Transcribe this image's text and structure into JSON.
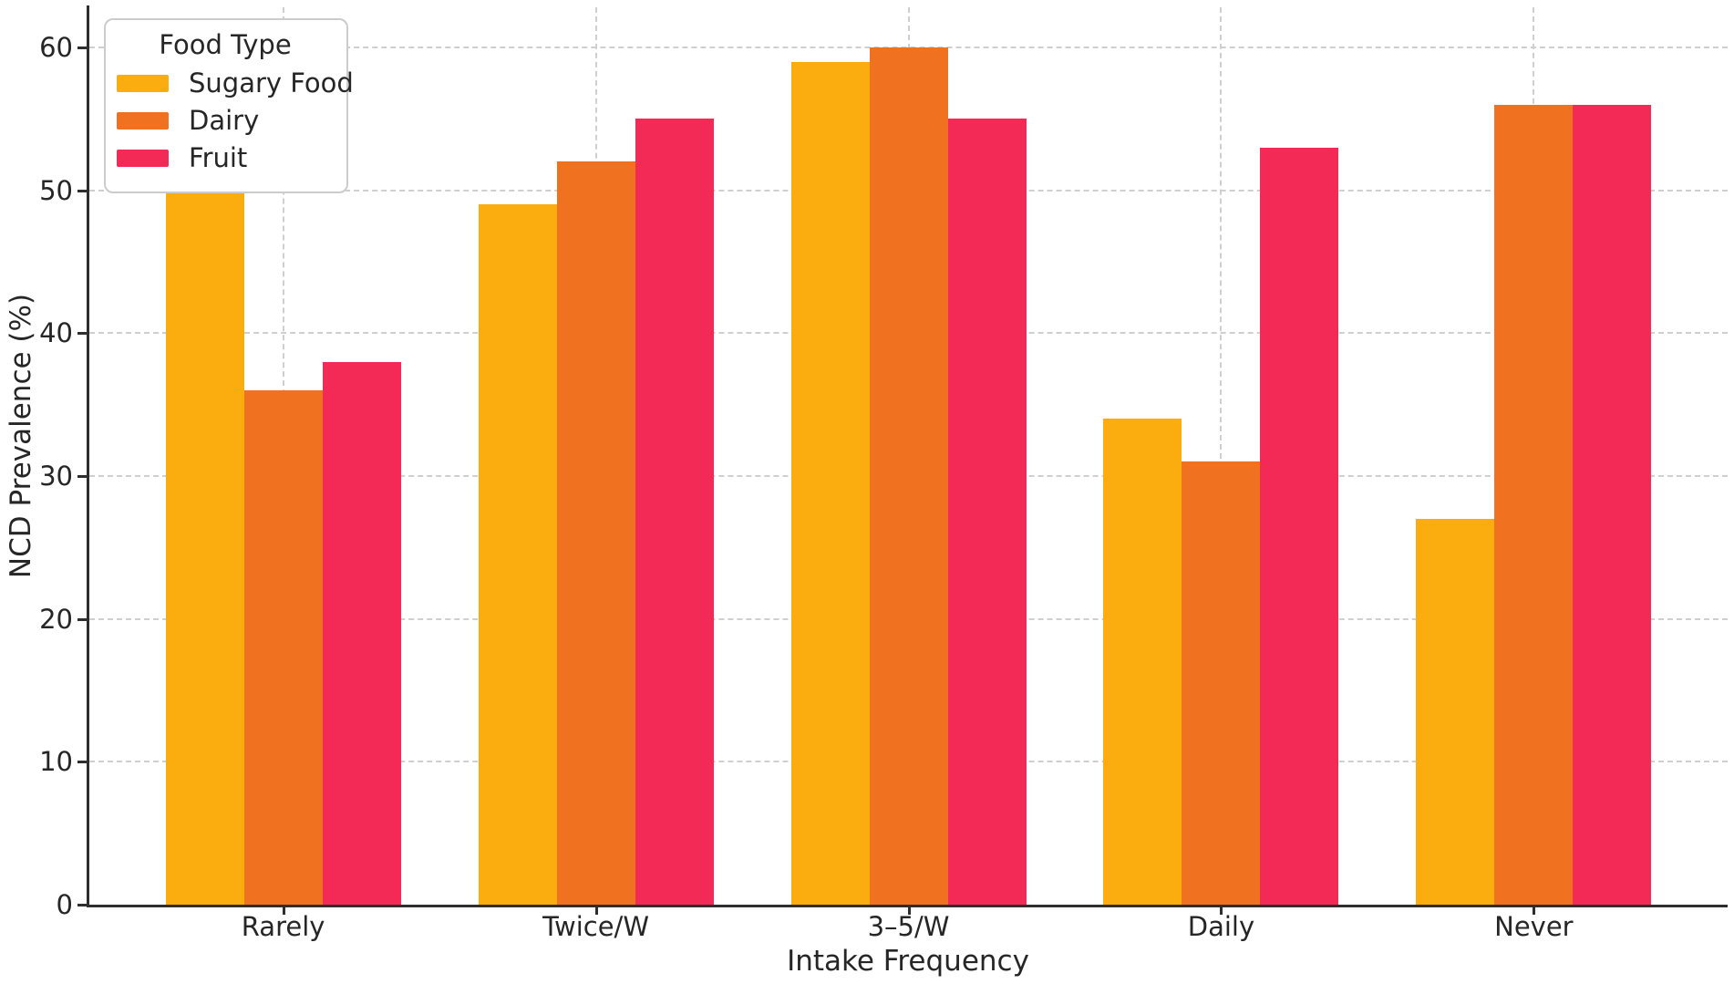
{
  "chart_data": {
    "type": "bar",
    "categories": [
      "Rarely",
      "Twice/W",
      "3–5/W",
      "Daily",
      "Never"
    ],
    "series": [
      {
        "name": "Sugary Food",
        "color": "#FBAD0F",
        "values": [
          51,
          49,
          59,
          34,
          27
        ]
      },
      {
        "name": "Dairy",
        "color": "#F0711F",
        "values": [
          36,
          52,
          60,
          31,
          56
        ]
      },
      {
        "name": "Fruit",
        "color": "#F22A55",
        "values": [
          38,
          55,
          55,
          53,
          56
        ]
      }
    ],
    "title": "",
    "xlabel": "Intake Frequency",
    "ylabel": "NCD Prevalence (%)",
    "yticks": [
      0,
      10,
      20,
      30,
      40,
      50,
      60
    ],
    "ylim": [
      0,
      62.8
    ],
    "legend": {
      "title": "Food Type",
      "position": "upper-left"
    },
    "grid": {
      "visible": true,
      "style": "dashed",
      "axes": "both"
    }
  },
  "style_colors": {
    "grid": "#cfcfcf",
    "spine": "#2e2e2e",
    "text": "#262626",
    "background": "#ffffff",
    "legend_border": "#cccccc"
  }
}
